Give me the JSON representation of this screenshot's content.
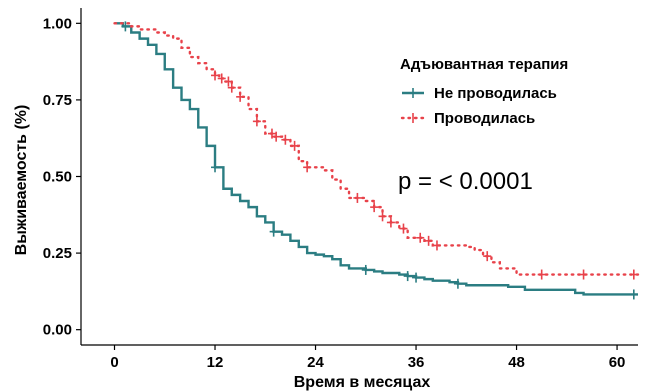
{
  "chart_data": {
    "type": "line",
    "title": "",
    "xlabel": "Время в месяцах",
    "ylabel": "Выживаемость (%)",
    "xlim": [
      -4,
      62.5
    ],
    "ylim": [
      -0.05,
      1.05
    ],
    "x_ticks": [
      0,
      12,
      24,
      36,
      48,
      60
    ],
    "x_tick_labels": [
      "0",
      "12",
      "24",
      "36",
      "48",
      "60"
    ],
    "y_ticks": [
      0,
      0.25,
      0.5,
      0.75,
      1.0
    ],
    "y_tick_labels": [
      "0.00",
      "0.25",
      "0.50",
      "0.75",
      "1.00"
    ],
    "grid": false,
    "legend": {
      "title": "Адъювантная терапия",
      "placement": "top-right"
    },
    "annotation": "p = < 0.0001",
    "series": [
      {
        "name": "Не проводилась",
        "color": "#2b7d82",
        "style": "solid",
        "steps": [
          [
            0,
            1.0
          ],
          [
            1,
            0.99
          ],
          [
            2,
            0.97
          ],
          [
            3,
            0.95
          ],
          [
            4,
            0.93
          ],
          [
            5,
            0.9
          ],
          [
            6,
            0.85
          ],
          [
            7,
            0.79
          ],
          [
            8,
            0.75
          ],
          [
            9,
            0.72
          ],
          [
            10,
            0.66
          ],
          [
            11,
            0.6
          ],
          [
            12,
            0.53
          ],
          [
            13,
            0.46
          ],
          [
            14,
            0.44
          ],
          [
            15,
            0.42
          ],
          [
            16,
            0.4
          ],
          [
            17,
            0.37
          ],
          [
            18,
            0.35
          ],
          [
            19,
            0.32
          ],
          [
            20,
            0.31
          ],
          [
            21,
            0.29
          ],
          [
            22,
            0.27
          ],
          [
            23,
            0.25
          ],
          [
            24,
            0.245
          ],
          [
            25,
            0.24
          ],
          [
            26,
            0.23
          ],
          [
            27,
            0.21
          ],
          [
            28,
            0.2
          ],
          [
            30,
            0.195
          ],
          [
            31,
            0.19
          ],
          [
            32,
            0.185
          ],
          [
            34,
            0.18
          ],
          [
            35,
            0.175
          ],
          [
            36,
            0.17
          ],
          [
            37,
            0.165
          ],
          [
            38,
            0.16
          ],
          [
            40,
            0.155
          ],
          [
            41,
            0.15
          ],
          [
            42,
            0.145
          ],
          [
            47,
            0.14
          ],
          [
            49,
            0.13
          ],
          [
            55,
            0.12
          ],
          [
            56,
            0.115
          ],
          [
            62.5,
            0.115
          ]
        ],
        "censor_x": [
          1.3,
          12,
          19,
          30,
          35,
          36,
          41,
          62
        ]
      },
      {
        "name": "Проводилась",
        "color": "#e8424a",
        "style": "dotted",
        "steps": [
          [
            0,
            1.0
          ],
          [
            2,
            0.99
          ],
          [
            3,
            0.98
          ],
          [
            5,
            0.97
          ],
          [
            6,
            0.96
          ],
          [
            7,
            0.95
          ],
          [
            8,
            0.92
          ],
          [
            9,
            0.89
          ],
          [
            10,
            0.87
          ],
          [
            11,
            0.85
          ],
          [
            12,
            0.83
          ],
          [
            12.5,
            0.82
          ],
          [
            13,
            0.81
          ],
          [
            14,
            0.79
          ],
          [
            15,
            0.76
          ],
          [
            16,
            0.72
          ],
          [
            17,
            0.68
          ],
          [
            18,
            0.64
          ],
          [
            19,
            0.63
          ],
          [
            20,
            0.62
          ],
          [
            21,
            0.6
          ],
          [
            22,
            0.55
          ],
          [
            23,
            0.53
          ],
          [
            25,
            0.52
          ],
          [
            26,
            0.49
          ],
          [
            27,
            0.46
          ],
          [
            28,
            0.43
          ],
          [
            30,
            0.42
          ],
          [
            31,
            0.4
          ],
          [
            32,
            0.37
          ],
          [
            33,
            0.35
          ],
          [
            34,
            0.33
          ],
          [
            35,
            0.3
          ],
          [
            36,
            0.3
          ],
          [
            37,
            0.29
          ],
          [
            38,
            0.275
          ],
          [
            42,
            0.27
          ],
          [
            43,
            0.26
          ],
          [
            44,
            0.24
          ],
          [
            45,
            0.22
          ],
          [
            46,
            0.2
          ],
          [
            48,
            0.18
          ],
          [
            62.5,
            0.18
          ]
        ],
        "censor_x": [
          12,
          12.8,
          13.6,
          14,
          15,
          17,
          18.8,
          19.3,
          20.4,
          21.5,
          23,
          29,
          31,
          32,
          33,
          34.5,
          36.5,
          37.5,
          38.5,
          44.5,
          51,
          56,
          62
        ]
      }
    ]
  }
}
